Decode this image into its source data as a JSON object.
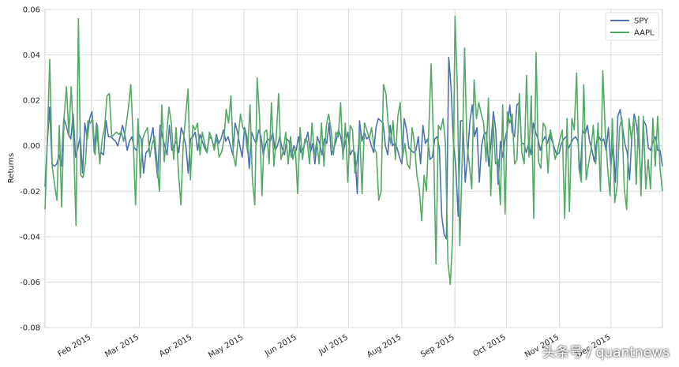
{
  "chart_data": {
    "type": "line",
    "title": "",
    "xlabel": "",
    "ylabel": "Returns",
    "ylim": [
      -0.08,
      0.06
    ],
    "yticks": [
      "0.06",
      "0.04",
      "0.02",
      "0.00",
      "-0.02",
      "-0.04",
      "-0.06",
      "-0.08"
    ],
    "xticks": [
      "Feb 2015",
      "Mar 2015",
      "Apr 2015",
      "May 2015",
      "Jun 2015",
      "Jul 2015",
      "Aug 2015",
      "Sep 2015",
      "Oct 2015",
      "Nov 2015",
      "Dec 2015"
    ],
    "x_range": [
      "2015-01-05",
      "2015-12-31"
    ],
    "x_frequency": "trading days",
    "grid": true,
    "legend_position": "top-right",
    "series": [
      {
        "name": "SPY",
        "color": "#4c72b0",
        "values": [
          -0.018,
          0.002,
          0.017,
          -0.008,
          -0.009,
          -0.008,
          -0.004,
          -0.009,
          0.012,
          0.009,
          0.005,
          0.003,
          0.014,
          -0.005,
          -0.001,
          0.004,
          -0.012,
          0.01,
          0.003,
          0.012,
          0.015,
          -0.003,
          0.01,
          -0.004,
          -0.003,
          -0.004,
          0.011,
          0.004,
          0.004,
          0.003,
          0.002,
          0.0,
          0.004,
          0.009,
          0.005,
          -0.002,
          0.002,
          0.004,
          -0.001,
          -0.002,
          0.005,
          0.003,
          -0.012,
          -0.003,
          -0.002,
          0.003,
          0.008,
          -0.004,
          -0.014,
          0.009,
          0.004,
          0.0,
          -0.004,
          0.009,
          -0.002,
          0.0,
          0.002,
          -0.003,
          0.008,
          0.005,
          0.0,
          -0.012,
          0.003,
          0.004,
          0.006,
          -0.002,
          0.005,
          0.002,
          -0.001,
          -0.003,
          0.004,
          0.003,
          -0.001,
          0.005,
          0.001,
          0.003,
          0.007,
          0.002,
          0.004,
          0.0,
          -0.004,
          0.01,
          0.006,
          0.0,
          -0.005,
          0.008,
          0.004,
          -0.01,
          0.006,
          0.003,
          0.001,
          0.007,
          0.004,
          -0.004,
          0.001,
          0.003,
          0.002,
          0.006,
          -0.002,
          0.0,
          0.004,
          -0.001,
          -0.004,
          0.003,
          0.002,
          -0.005,
          0.0,
          -0.002,
          0.004,
          -0.003,
          -0.001,
          0.002,
          0.006,
          -0.003,
          0.001,
          -0.008,
          0.004,
          0.001,
          -0.004,
          0.003,
          0.001,
          0.01,
          -0.004,
          -0.001,
          0.002,
          0.007,
          0.004,
          -0.003,
          0.002,
          0.006,
          -0.004,
          -0.002,
          -0.003,
          -0.021,
          0.011,
          0.002,
          0.006,
          0.003,
          0.004,
          0.0,
          -0.003,
          0.008,
          0.012,
          0.011,
          0.01,
          0.0,
          -0.004,
          0.009,
          0.0,
          0.001,
          -0.001,
          -0.005,
          -0.008,
          0.012,
          0.007,
          -0.001,
          -0.002,
          -0.003,
          -0.002,
          0.004,
          -0.008,
          0.009,
          0.001,
          0.003,
          -0.006,
          -0.005,
          0.003,
          0.004,
          -0.001,
          -0.031,
          -0.039,
          -0.041,
          0.039,
          0.025,
          0.001,
          -0.009,
          -0.031,
          0.011,
          0.011,
          -0.016,
          -0.005,
          0.011,
          0.018,
          0.004,
          0.008,
          -0.016,
          0.0,
          0.005,
          0.006,
          -0.009,
          0.001,
          0.015,
          0.007,
          -0.017,
          0.002,
          -0.005,
          0.003,
          0.008,
          0.018,
          0.006,
          0.004,
          0.018,
          0.019,
          0.001,
          0.001,
          -0.003,
          0.001,
          -0.004,
          0.01,
          0.006,
          0.003,
          -0.002,
          0.002,
          0.004,
          0.001,
          0.005,
          0.002,
          -0.001,
          -0.004,
          -0.003,
          0.001,
          0.003,
          0.004,
          -0.001,
          0.001,
          0.003,
          0.004,
          0.002,
          -0.013,
          0.007,
          0.005,
          0.009,
          0.002,
          -0.002,
          -0.007,
          0.002,
          0.004,
          0.002,
          0.003,
          -0.002,
          0.008,
          -0.009,
          0.001,
          -0.016,
          0.013,
          0.016,
          0.008,
          0.001,
          -0.003,
          -0.015,
          0.004,
          0.014,
          0.009,
          0.0,
          -0.017,
          0.011,
          0.009,
          -0.001,
          -0.002,
          0.002,
          0.004,
          -0.002,
          -0.002,
          -0.009
        ]
      },
      {
        "name": "AAPL",
        "color": "#55a868",
        "values": [
          -0.028,
          0.003,
          0.038,
          -0.009,
          -0.017,
          -0.024,
          0.009,
          -0.027,
          0.013,
          0.026,
          0.005,
          0.026,
          0.002,
          -0.035,
          0.056,
          -0.013,
          -0.014,
          -0.007,
          0.011,
          0.01,
          0.012,
          -0.004,
          0.009,
          -0.008,
          0.003,
          0.008,
          0.022,
          0.023,
          0.004,
          0.005,
          0.006,
          0.005,
          0.006,
          0.002,
          0.009,
          0.017,
          0.027,
          0.003,
          -0.026,
          0.012,
          -0.014,
          0.003,
          0.006,
          0.008,
          -0.005,
          0.001,
          0.004,
          -0.008,
          -0.02,
          0.018,
          -0.007,
          0.005,
          0.017,
          0.01,
          -0.006,
          0.008,
          -0.012,
          -0.026,
          0.001,
          0.013,
          0.025,
          -0.015,
          0.009,
          0.007,
          0.01,
          -0.004,
          0.006,
          0.001,
          -0.003,
          0.006,
          0.003,
          -0.002,
          0.004,
          -0.005,
          -0.003,
          0.002,
          0.016,
          0.01,
          0.022,
          -0.004,
          -0.009,
          0.003,
          0.014,
          0.008,
          0.006,
          -0.003,
          0.018,
          -0.015,
          -0.026,
          0.03,
          0.013,
          -0.022,
          0.006,
          0.007,
          -0.008,
          0.019,
          -0.009,
          0.004,
          0.023,
          -0.006,
          -0.002,
          0.006,
          -0.008,
          0.004,
          -0.006,
          -0.001,
          -0.021,
          0.008,
          -0.006,
          0.003,
          0.002,
          -0.008,
          0.01,
          -0.004,
          0.002,
          -0.008,
          0.01,
          -0.009,
          0.009,
          0.014,
          0.007,
          -0.004,
          0.006,
          0.004,
          0.019,
          -0.006,
          0.01,
          -0.016,
          0.009,
          0.007,
          -0.012,
          -0.006,
          0.006,
          -0.021,
          0.01,
          0.007,
          0.003,
          0.008,
          -0.001,
          -0.003,
          -0.024,
          -0.02,
          0.027,
          0.023,
          0.009,
          0.001,
          0.011,
          -0.006,
          0.013,
          0.019,
          -0.005,
          0.001,
          -0.008,
          -0.01,
          0.008,
          0.001,
          -0.013,
          -0.019,
          -0.033,
          -0.013,
          -0.02,
          0.007,
          0.036,
          0.002,
          -0.052,
          0.009,
          0.007,
          0.012,
          0.001,
          -0.051,
          -0.061,
          -0.04,
          0.057,
          0.025,
          -0.044,
          -0.006,
          0.043,
          0.001,
          -0.008,
          -0.019,
          0.029,
          0.012,
          0.019,
          0.014,
          0.01,
          -0.007,
          0.021,
          -0.022,
          0.011,
          -0.008,
          -0.006,
          -0.026,
          0.018,
          -0.03,
          0.015,
          0.01,
          0.014,
          -0.008,
          -0.006,
          0.023,
          -0.003,
          -0.008,
          0.031,
          -0.005,
          0.022,
          -0.032,
          0.041,
          -0.007,
          -0.01,
          0.01,
          0.008,
          -0.012,
          0.007,
          0.002,
          -0.006,
          -0.002,
          0.003,
          0.007,
          -0.032,
          0.012,
          -0.029,
          0.012,
          0.007,
          0.032,
          -0.01,
          -0.016,
          0.027,
          -0.015,
          -0.008,
          -0.002,
          0.009,
          -0.008,
          0.01,
          -0.02,
          0.033,
          0.007,
          -0.01,
          -0.022,
          0.012,
          -0.025,
          -0.018,
          0.008,
          0.012,
          -0.019,
          -0.028,
          0.012,
          0.003,
          0.012,
          -0.017,
          0.013,
          -0.022,
          0.013,
          -0.019,
          -0.006,
          -0.019,
          0.012,
          -0.009,
          0.013,
          -0.01,
          -0.02
        ]
      }
    ]
  },
  "watermark": "头条号 / quantnews"
}
